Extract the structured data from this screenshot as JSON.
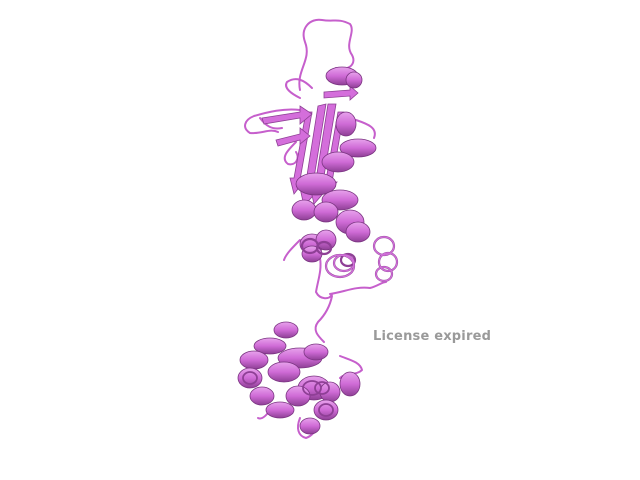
{
  "viewer": {
    "background": "#ffffff",
    "molecule_color": "#d070d8",
    "molecule_shade": "#8e3f95",
    "representation": "cartoon"
  },
  "watermark": {
    "text": "License expired",
    "color": "#9a9a9a"
  }
}
